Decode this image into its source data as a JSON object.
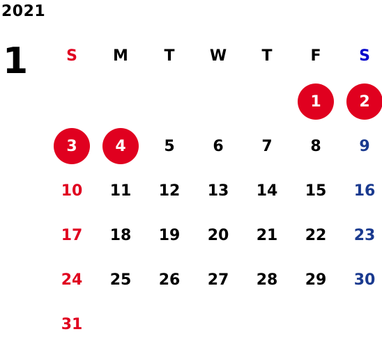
{
  "year": "2021",
  "month": "1",
  "weekdays": [
    "S",
    "M",
    "T",
    "W",
    "T",
    "F",
    "S"
  ],
  "weeks": [
    [
      "",
      "",
      "",
      "",
      "",
      "1",
      "2"
    ],
    [
      "3",
      "4",
      "5",
      "6",
      "7",
      "8",
      "9"
    ],
    [
      "10",
      "11",
      "12",
      "13",
      "14",
      "15",
      "16"
    ],
    [
      "17",
      "18",
      "19",
      "20",
      "21",
      "22",
      "23"
    ],
    [
      "24",
      "25",
      "26",
      "27",
      "28",
      "29",
      "30"
    ],
    [
      "31",
      "",
      "",
      "",
      "",
      "",
      ""
    ]
  ],
  "holidays": [
    "1",
    "2",
    "3",
    "4"
  ],
  "colors": {
    "sunday": "#e0001f",
    "saturday": "#1a3a8f",
    "saturday_header": "#0000cc",
    "holiday_circle": "#e0001f",
    "weekday": "#000000"
  }
}
